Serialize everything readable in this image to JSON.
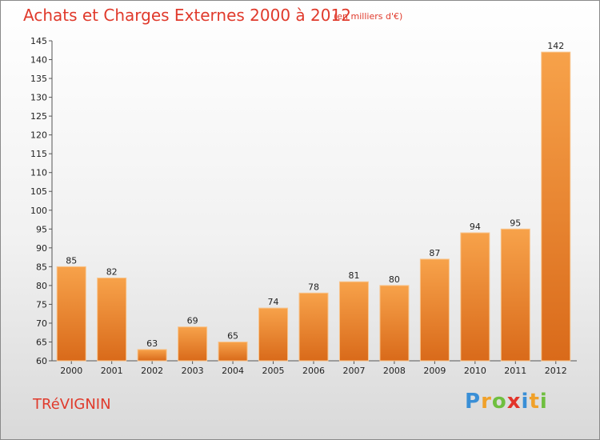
{
  "header": {
    "title": "Achats et Charges Externes 2000 à 2012",
    "subtitle": "(en milliers d'€)"
  },
  "footer": {
    "town": "TRéVIGNIN",
    "logo_text": [
      "P",
      "r",
      "o",
      "x",
      "i",
      "t",
      "i"
    ]
  },
  "colors": {
    "title": "#e03a2c",
    "bar_top": "#f7a24a",
    "bar_bottom": "#d96a1a"
  },
  "chart_data": {
    "type": "bar",
    "title": "Achats et Charges Externes 2000 à 2012",
    "subtitle": "(en milliers d'€)",
    "xlabel": "",
    "ylabel": "",
    "categories": [
      "2000",
      "2001",
      "2002",
      "2003",
      "2004",
      "2005",
      "2006",
      "2007",
      "2008",
      "2009",
      "2010",
      "2011",
      "2012"
    ],
    "values": [
      85,
      82,
      63,
      69,
      65,
      74,
      78,
      81,
      80,
      87,
      94,
      95,
      142
    ],
    "ylim": [
      60,
      145
    ],
    "yticks": [
      60,
      65,
      70,
      75,
      80,
      85,
      90,
      95,
      100,
      105,
      110,
      115,
      120,
      125,
      130,
      135,
      140,
      145
    ],
    "grid": false,
    "data_labels": true
  }
}
